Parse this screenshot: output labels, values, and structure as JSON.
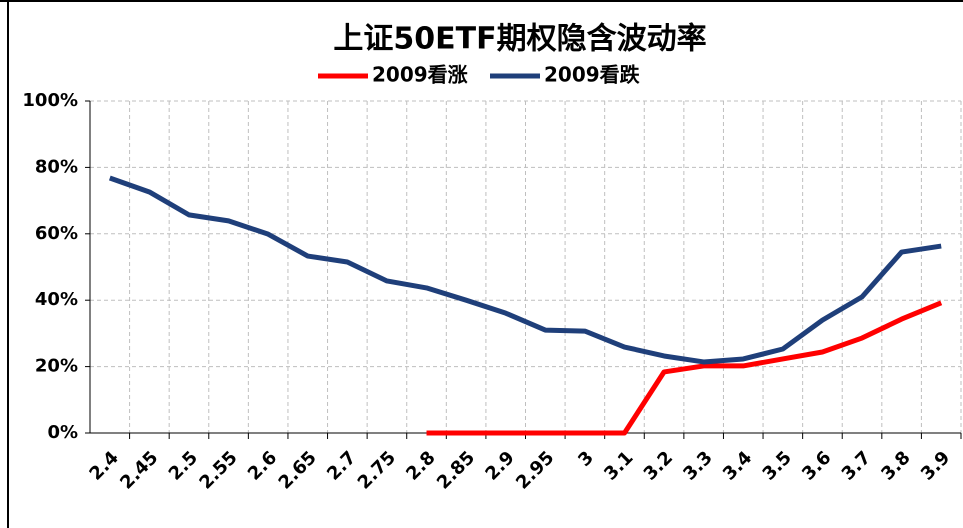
{
  "chart_data": {
    "type": "line",
    "title": "上证50ETF期权隐含波动率",
    "categories": [
      "2.4",
      "2.45",
      "2.5",
      "2.55",
      "2.6",
      "2.65",
      "2.7",
      "2.75",
      "2.8",
      "2.85",
      "2.9",
      "2.95",
      "3",
      "3.1",
      "3.2",
      "3.3",
      "3.4",
      "3.5",
      "3.6",
      "3.7",
      "3.8",
      "3.9"
    ],
    "series": [
      {
        "name": "2009看涨",
        "color": "#ff0000",
        "values": [
          null,
          null,
          null,
          null,
          null,
          null,
          null,
          null,
          0,
          0,
          0,
          0,
          0,
          0,
          18.4,
          20.2,
          20.2,
          22.3,
          24.4,
          28.6,
          34.3,
          39.2
        ]
      },
      {
        "name": "2009看跌",
        "color": "#1f3f7a",
        "values": [
          76.8,
          72.6,
          65.7,
          63.9,
          59.9,
          53.3,
          51.5,
          45.8,
          43.7,
          40,
          36.1,
          31,
          30.7,
          25.9,
          23.2,
          21.4,
          22.3,
          25.3,
          34,
          41,
          54.5,
          56.3
        ]
      }
    ],
    "ylim": [
      0,
      100
    ],
    "yticks": [
      {
        "value": 0,
        "label": "0%"
      },
      {
        "value": 20,
        "label": "20%"
      },
      {
        "value": 40,
        "label": "40%"
      },
      {
        "value": 60,
        "label": "60%"
      },
      {
        "value": 80,
        "label": "80%"
      },
      {
        "value": 100,
        "label": "100%"
      }
    ],
    "grid": true,
    "legend": "top"
  }
}
